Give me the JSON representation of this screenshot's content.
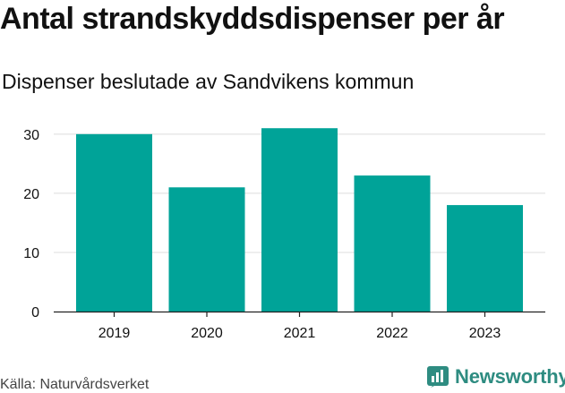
{
  "header": {
    "title": "Antal strandskyddsdispenser per år",
    "subtitle": "Dispenser beslutade av Sandvikens kommun"
  },
  "footer": {
    "source": "Källa: Naturvårdsverket",
    "brand": "Newsworthy"
  },
  "colors": {
    "bar": "#00a398",
    "grid": "#dddddd",
    "axis": "#222222",
    "text": "#111111",
    "brand": "#2e8c81"
  },
  "chart_data": {
    "type": "bar",
    "title": "Antal strandskyddsdispenser per år",
    "subtitle": "Dispenser beslutade av Sandvikens kommun",
    "xlabel": "",
    "ylabel": "",
    "categories": [
      "2019",
      "2020",
      "2021",
      "2022",
      "2023"
    ],
    "values": [
      30,
      21,
      31,
      23,
      18
    ],
    "ylim": [
      0,
      33
    ],
    "yticks": [
      0,
      10,
      20,
      30
    ],
    "grid": true,
    "legend": "none"
  }
}
